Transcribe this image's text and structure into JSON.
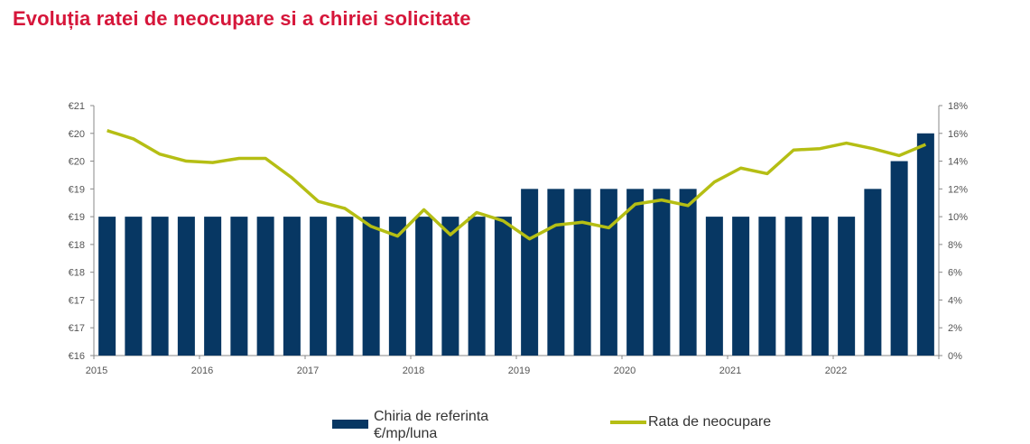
{
  "title": "Evoluția ratei de neocupare si a chiriei solicitate",
  "chart_data": {
    "type": "bar",
    "left_axis": {
      "ticks": [
        "€16",
        "€17",
        "€17",
        "€18",
        "€18",
        "€19",
        "€19",
        "€20",
        "€20",
        "€21"
      ],
      "ylim": [
        16,
        20.5
      ]
    },
    "right_axis": {
      "ticks": [
        "0%",
        "2%",
        "4%",
        "6%",
        "8%",
        "10%",
        "12%",
        "14%",
        "16%",
        "18%"
      ],
      "ylim": [
        0,
        18
      ]
    },
    "x_labels": [
      "2015",
      "2016",
      "2017",
      "2018",
      "2019",
      "2020",
      "2021",
      "2022"
    ],
    "series": [
      {
        "name": "Chiria de referinta €/mp/luna",
        "type": "bar",
        "axis": "left",
        "color": "#073763",
        "values": [
          18.5,
          18.5,
          18.5,
          18.5,
          18.5,
          18.5,
          18.5,
          18.5,
          18.5,
          18.5,
          18.5,
          18.5,
          18.5,
          18.5,
          18.5,
          18.5,
          19.0,
          19.0,
          19.0,
          19.0,
          19.0,
          19.0,
          19.0,
          18.5,
          18.5,
          18.5,
          18.5,
          18.5,
          18.5,
          19.0,
          19.5,
          20.0
        ]
      },
      {
        "name": "Rata de neocupare",
        "type": "line",
        "axis": "right",
        "color": "#b5be14",
        "values": [
          16.2,
          15.6,
          14.5,
          14.0,
          13.9,
          14.2,
          14.2,
          12.8,
          11.1,
          10.6,
          9.3,
          8.6,
          10.5,
          8.7,
          10.3,
          9.7,
          8.4,
          9.4,
          9.6,
          9.2,
          10.9,
          11.2,
          10.8,
          12.5,
          13.5,
          13.1,
          14.8,
          14.9,
          15.3,
          14.9,
          14.4,
          15.2
        ]
      }
    ],
    "legend": [
      "Chiria de referinta €/mp/luna",
      "Rata de neocupare"
    ],
    "legend_position": "bottom"
  },
  "legend": {
    "bar_line1": "Chiria de referinta",
    "bar_line2": "€/mp/luna",
    "line_label": "Rata de neocupare"
  }
}
